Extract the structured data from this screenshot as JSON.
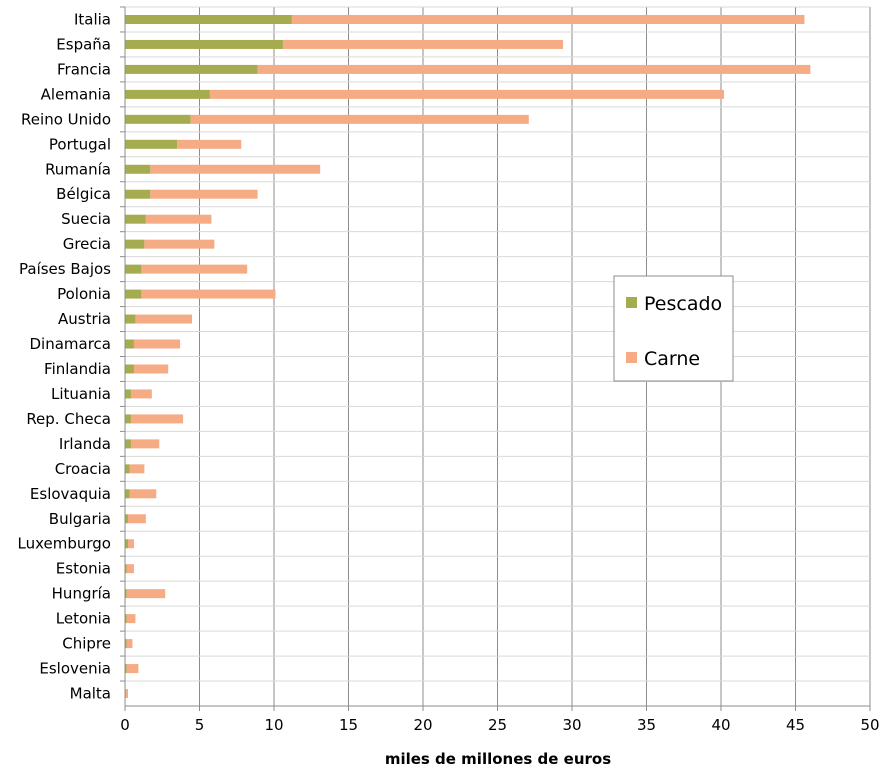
{
  "chart_data": {
    "type": "bar",
    "orientation": "horizontal",
    "stacked": true,
    "categories": [
      "Italia",
      "España",
      "Francia",
      "Alemania",
      "Reino Unido",
      "Portugal",
      "Rumanía",
      "Bélgica",
      "Suecia",
      "Grecia",
      "Países Bajos",
      "Polonia",
      "Austria",
      "Dinamarca",
      "Finlandia",
      "Lituania",
      "Rep. Checa",
      "Irlanda",
      "Croacia",
      "Eslovaquia",
      "Bulgaria",
      "Luxemburgo",
      "Estonia",
      "Hungría",
      "Letonia",
      "Chipre",
      "Eslovenia",
      "Malta"
    ],
    "series": [
      {
        "name": "Pescado",
        "color": "#a5ab4f",
        "values": [
          11.2,
          10.6,
          8.9,
          5.7,
          4.4,
          3.5,
          1.7,
          1.7,
          1.4,
          1.3,
          1.1,
          1.1,
          0.7,
          0.6,
          0.6,
          0.4,
          0.4,
          0.4,
          0.3,
          0.3,
          0.2,
          0.2,
          0.1,
          0.1,
          0.1,
          0.1,
          0.1,
          0.0
        ]
      },
      {
        "name": "Carne",
        "color": "#f5ac85",
        "values": [
          34.4,
          18.8,
          37.1,
          34.5,
          22.7,
          4.3,
          11.4,
          7.2,
          4.4,
          4.7,
          7.1,
          9.0,
          3.8,
          3.1,
          2.3,
          1.4,
          3.5,
          1.9,
          1.0,
          1.8,
          1.2,
          0.4,
          0.5,
          2.6,
          0.6,
          0.4,
          0.8,
          0.2
        ]
      }
    ],
    "xlabel": "miles de millones de euros",
    "ylabel": "",
    "xlim": [
      0,
      50
    ],
    "xticks": [
      0,
      5,
      10,
      15,
      20,
      25,
      30,
      35,
      40,
      45,
      50
    ],
    "grid": true,
    "legend_position": "right"
  }
}
